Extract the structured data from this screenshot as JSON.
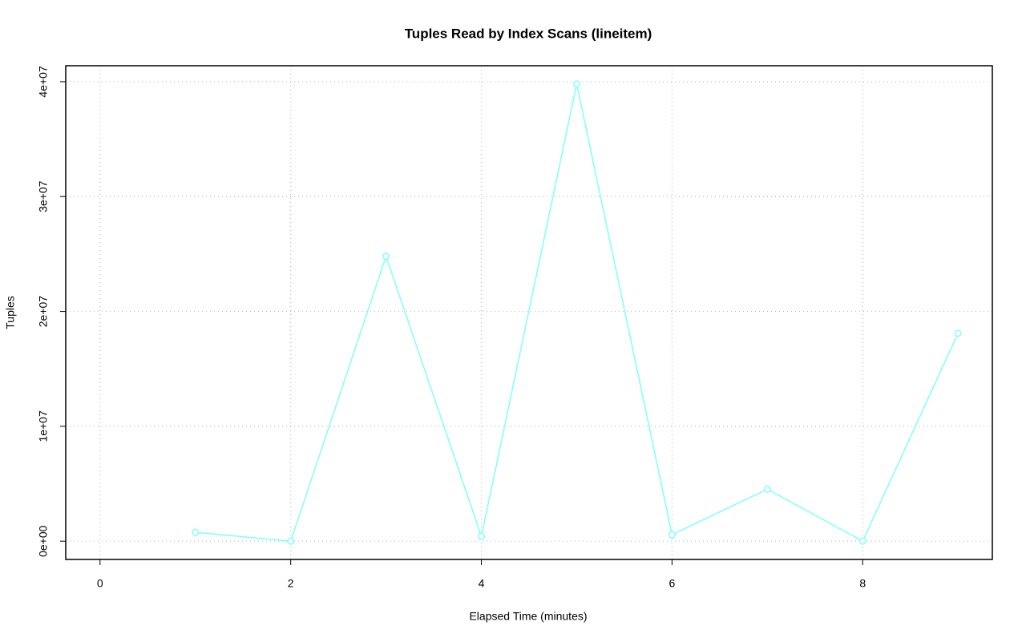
{
  "chart_data": {
    "type": "line",
    "title": "Tuples Read by Index Scans (lineitem)",
    "xlabel": "Elapsed Time (minutes)",
    "ylabel": "Tuples",
    "x": [
      1,
      2,
      3,
      4,
      5,
      6,
      7,
      8,
      9
    ],
    "series": [
      {
        "name": "lineitem",
        "color": "#7fffff",
        "values": [
          770000,
          0,
          24800000,
          420000,
          39800000,
          560000,
          4530000,
          0,
          18100000
        ]
      }
    ],
    "xlim": [
      -0.36,
      9.36
    ],
    "xticks": [
      0,
      2,
      4,
      6,
      8
    ],
    "ylim": [
      -1590000,
      41390000
    ],
    "yticks": [
      {
        "value": 0,
        "label": "0e+00"
      },
      {
        "value": 10000000,
        "label": "1e+07"
      },
      {
        "value": 20000000,
        "label": "2e+07"
      },
      {
        "value": 30000000,
        "label": "3e+07"
      },
      {
        "value": 40000000,
        "label": "4e+07"
      }
    ],
    "grid": true
  }
}
